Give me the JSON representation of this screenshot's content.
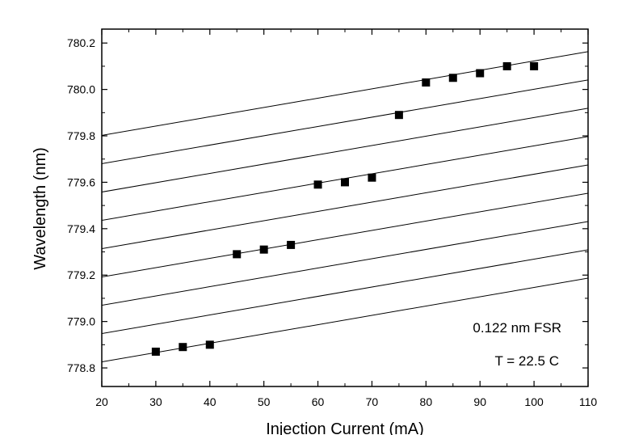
{
  "chart_data": {
    "type": "scatter",
    "title": "",
    "xlabel": "Injection Current (mA)",
    "ylabel": "Wavelength (nm)",
    "xlim": [
      20,
      110
    ],
    "ylim": [
      778.72,
      780.26
    ],
    "x_ticks": [
      20,
      30,
      40,
      50,
      60,
      70,
      80,
      90,
      100,
      110
    ],
    "x_tick_labels": [
      "20",
      "30",
      "40",
      "50",
      "60",
      "70",
      "80",
      "90",
      "100",
      "110"
    ],
    "y_ticks": [
      778.8,
      779.0,
      779.2,
      779.4,
      779.6,
      779.8,
      780.0,
      780.2
    ],
    "y_tick_labels": [
      "778.8",
      "779.0",
      "779.2",
      "779.4",
      "779.6",
      "779.8",
      "780.0",
      "780.2"
    ],
    "grid": false,
    "legend": "none",
    "series": [
      {
        "marker": "square",
        "color": "#000000",
        "x": [
          30,
          35,
          40,
          45,
          50,
          55,
          60,
          65,
          70,
          75,
          80,
          85,
          90,
          95,
          100
        ],
        "y": [
          778.87,
          778.89,
          778.9,
          779.29,
          779.31,
          779.33,
          779.59,
          779.6,
          779.62,
          779.89,
          780.03,
          780.05,
          780.07,
          780.1,
          780.1
        ]
      }
    ],
    "reference_lines": {
      "style": "thin-solid",
      "slope_nm_per_mA": 0.00401,
      "spacing_nm": 0.122,
      "y_at_x20": [
        778.826,
        778.948,
        779.07,
        779.192,
        779.314,
        779.436,
        779.558,
        779.68,
        779.802
      ]
    },
    "annotations": [
      "0.122 nm FSR",
      "T = 22.5 C"
    ]
  }
}
